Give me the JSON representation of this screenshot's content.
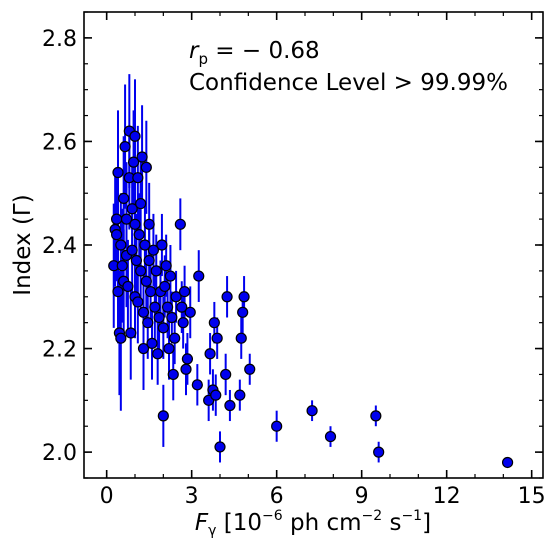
{
  "chart_data": {
    "type": "scatter",
    "xlabel_var": "F",
    "xlabel_sub": "γ",
    "xlabel_unit": " [10",
    "xlabel_exp1": "−6",
    "xlabel_mid": " ph cm",
    "xlabel_exp2": "−2",
    "xlabel_mid2": " s",
    "xlabel_exp3": "−1",
    "xlabel_end": "]",
    "ylabel": "Index (Γ)",
    "annotation_rvar": "r",
    "annotation_rsub": "p",
    "annotation_rval": " = − 0.68",
    "annotation_line2": "Confidence Level > 99.99%",
    "xlim": [
      -0.8,
      15.4
    ],
    "ylim": [
      1.95,
      2.85
    ],
    "xticks": [
      0,
      3,
      6,
      9,
      12,
      15
    ],
    "yticks": [
      2.0,
      2.2,
      2.4,
      2.6,
      2.8
    ],
    "xtick_labels": [
      "0",
      "3",
      "6",
      "9",
      "12",
      "15"
    ],
    "ytick_labels": [
      "2.0",
      "2.2",
      "2.4",
      "2.6",
      "2.8"
    ],
    "marker_color": "#0000ee",
    "errorbar_color": "#0000ee",
    "points": [
      {
        "x": 0.25,
        "y": 2.36,
        "e": 0.12
      },
      {
        "x": 0.3,
        "y": 2.43,
        "e": 0.11
      },
      {
        "x": 0.35,
        "y": 2.45,
        "e": 0.1
      },
      {
        "x": 0.35,
        "y": 2.42,
        "e": 0.09
      },
      {
        "x": 0.4,
        "y": 2.54,
        "e": 0.12
      },
      {
        "x": 0.4,
        "y": 2.31,
        "e": 0.1
      },
      {
        "x": 0.45,
        "y": 2.23,
        "e": 0.12
      },
      {
        "x": 0.5,
        "y": 2.4,
        "e": 0.1
      },
      {
        "x": 0.5,
        "y": 2.22,
        "e": 0.14
      },
      {
        "x": 0.55,
        "y": 2.36,
        "e": 0.11
      },
      {
        "x": 0.6,
        "y": 2.49,
        "e": 0.12
      },
      {
        "x": 0.6,
        "y": 2.33,
        "e": 0.1
      },
      {
        "x": 0.65,
        "y": 2.59,
        "e": 0.12
      },
      {
        "x": 0.7,
        "y": 2.45,
        "e": 0.11
      },
      {
        "x": 0.7,
        "y": 2.38,
        "e": 0.1
      },
      {
        "x": 0.75,
        "y": 2.32,
        "e": 0.09
      },
      {
        "x": 0.8,
        "y": 2.62,
        "e": 0.11
      },
      {
        "x": 0.8,
        "y": 2.53,
        "e": 0.1
      },
      {
        "x": 0.85,
        "y": 2.23,
        "e": 0.09
      },
      {
        "x": 0.9,
        "y": 2.47,
        "e": 0.1
      },
      {
        "x": 0.9,
        "y": 2.39,
        "e": 0.09
      },
      {
        "x": 0.95,
        "y": 2.56,
        "e": 0.1
      },
      {
        "x": 1.0,
        "y": 2.61,
        "e": 0.11
      },
      {
        "x": 1.0,
        "y": 2.44,
        "e": 0.09
      },
      {
        "x": 1.0,
        "y": 2.3,
        "e": 0.08
      },
      {
        "x": 1.05,
        "y": 2.37,
        "e": 0.09
      },
      {
        "x": 1.1,
        "y": 2.53,
        "e": 0.1
      },
      {
        "x": 1.1,
        "y": 2.29,
        "e": 0.08
      },
      {
        "x": 1.15,
        "y": 2.42,
        "e": 0.08
      },
      {
        "x": 1.2,
        "y": 2.48,
        "e": 0.09
      },
      {
        "x": 1.2,
        "y": 2.35,
        "e": 0.08
      },
      {
        "x": 1.25,
        "y": 2.57,
        "e": 0.1
      },
      {
        "x": 1.3,
        "y": 2.2,
        "e": 0.08
      },
      {
        "x": 1.3,
        "y": 2.27,
        "e": 0.08
      },
      {
        "x": 1.35,
        "y": 2.4,
        "e": 0.08
      },
      {
        "x": 1.4,
        "y": 2.55,
        "e": 0.09
      },
      {
        "x": 1.4,
        "y": 2.33,
        "e": 0.07
      },
      {
        "x": 1.45,
        "y": 2.25,
        "e": 0.07
      },
      {
        "x": 1.5,
        "y": 2.44,
        "e": 0.08
      },
      {
        "x": 1.5,
        "y": 2.37,
        "e": 0.07
      },
      {
        "x": 1.55,
        "y": 2.31,
        "e": 0.07
      },
      {
        "x": 1.6,
        "y": 2.21,
        "e": 0.07
      },
      {
        "x": 1.65,
        "y": 2.39,
        "e": 0.07
      },
      {
        "x": 1.7,
        "y": 2.28,
        "e": 0.07
      },
      {
        "x": 1.75,
        "y": 2.35,
        "e": 0.07
      },
      {
        "x": 1.8,
        "y": 2.19,
        "e": 0.06
      },
      {
        "x": 1.85,
        "y": 2.26,
        "e": 0.06
      },
      {
        "x": 1.9,
        "y": 2.31,
        "e": 0.06
      },
      {
        "x": 1.95,
        "y": 2.4,
        "e": 0.06
      },
      {
        "x": 2.0,
        "y": 2.07,
        "e": 0.06
      },
      {
        "x": 2.0,
        "y": 2.24,
        "e": 0.06
      },
      {
        "x": 2.05,
        "y": 2.32,
        "e": 0.06
      },
      {
        "x": 2.1,
        "y": 2.36,
        "e": 0.06
      },
      {
        "x": 2.15,
        "y": 2.28,
        "e": 0.06
      },
      {
        "x": 2.2,
        "y": 2.2,
        "e": 0.06
      },
      {
        "x": 2.25,
        "y": 2.34,
        "e": 0.06
      },
      {
        "x": 2.3,
        "y": 2.26,
        "e": 0.05
      },
      {
        "x": 2.35,
        "y": 2.15,
        "e": 0.05
      },
      {
        "x": 2.4,
        "y": 2.22,
        "e": 0.05
      },
      {
        "x": 2.45,
        "y": 2.3,
        "e": 0.05
      },
      {
        "x": 2.6,
        "y": 2.44,
        "e": 0.05
      },
      {
        "x": 2.65,
        "y": 2.28,
        "e": 0.05
      },
      {
        "x": 2.7,
        "y": 2.25,
        "e": 0.05
      },
      {
        "x": 2.75,
        "y": 2.31,
        "e": 0.05
      },
      {
        "x": 2.8,
        "y": 2.16,
        "e": 0.05
      },
      {
        "x": 2.85,
        "y": 2.18,
        "e": 0.05
      },
      {
        "x": 2.95,
        "y": 2.27,
        "e": 0.05
      },
      {
        "x": 3.2,
        "y": 2.13,
        "e": 0.04
      },
      {
        "x": 3.25,
        "y": 2.34,
        "e": 0.05
      },
      {
        "x": 3.6,
        "y": 2.1,
        "e": 0.04
      },
      {
        "x": 3.65,
        "y": 2.19,
        "e": 0.04
      },
      {
        "x": 3.75,
        "y": 2.12,
        "e": 0.04
      },
      {
        "x": 3.8,
        "y": 2.25,
        "e": 0.04
      },
      {
        "x": 3.85,
        "y": 2.11,
        "e": 0.04
      },
      {
        "x": 3.9,
        "y": 2.22,
        "e": 0.04
      },
      {
        "x": 4.0,
        "y": 2.01,
        "e": 0.03
      },
      {
        "x": 4.2,
        "y": 2.15,
        "e": 0.04
      },
      {
        "x": 4.25,
        "y": 2.3,
        "e": 0.04
      },
      {
        "x": 4.35,
        "y": 2.09,
        "e": 0.03
      },
      {
        "x": 4.7,
        "y": 2.11,
        "e": 0.03
      },
      {
        "x": 4.75,
        "y": 2.22,
        "e": 0.04
      },
      {
        "x": 4.8,
        "y": 2.27,
        "e": 0.04
      },
      {
        "x": 4.85,
        "y": 2.3,
        "e": 0.04
      },
      {
        "x": 5.05,
        "y": 2.16,
        "e": 0.03
      },
      {
        "x": 6.0,
        "y": 2.05,
        "e": 0.03
      },
      {
        "x": 7.25,
        "y": 2.08,
        "e": 0.02
      },
      {
        "x": 7.9,
        "y": 2.03,
        "e": 0.02
      },
      {
        "x": 9.5,
        "y": 2.07,
        "e": 0.02
      },
      {
        "x": 9.6,
        "y": 2.0,
        "e": 0.02
      },
      {
        "x": 14.15,
        "y": 1.98,
        "e": 0.01
      }
    ]
  }
}
